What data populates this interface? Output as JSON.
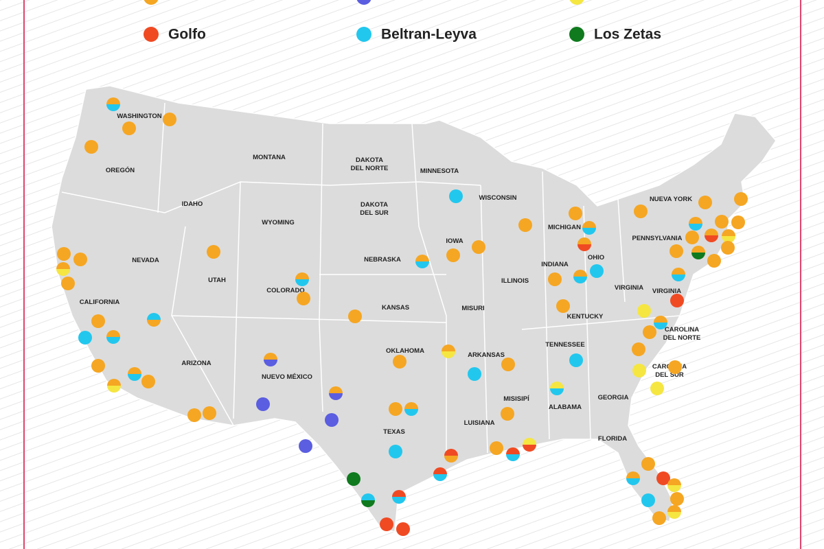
{
  "legend": [
    {
      "label": "Golfo",
      "color": "#f04a23"
    },
    {
      "label": "Beltran-Leyva",
      "color": "#22c7ee"
    },
    {
      "label": "Los Zetas",
      "color": "#0f7a1e"
    }
  ],
  "states": [
    [
      "WASHINGTON"
    ],
    [
      "OREGÓN"
    ],
    [
      "IDAHO"
    ],
    [
      "MONTANA"
    ],
    [
      "NEVADA"
    ],
    [
      "CALIFORNIA"
    ],
    [
      "UTAH"
    ],
    [
      "WYOMING"
    ],
    [
      "COLORADO"
    ],
    [
      "ARIZONA"
    ],
    [
      "NUEVO MÉXICO"
    ],
    [
      "DAKOTA",
      "DEL NORTE"
    ],
    [
      "DAKOTA",
      "DEL SUR"
    ],
    [
      "NEBRASKA"
    ],
    [
      "KANSAS"
    ],
    [
      "OKLAHOMA"
    ],
    [
      "TEXAS"
    ],
    [
      "MINNESOTA"
    ],
    [
      "IOWA"
    ],
    [
      "MISURI"
    ],
    [
      "ARKANSAS"
    ],
    [
      "LUISIANA"
    ],
    [
      "WISCONSIN"
    ],
    [
      "ILLINOIS"
    ],
    [
      "MISISIPÍ"
    ],
    [
      "MICHIGAN"
    ],
    [
      "INDIANA"
    ],
    [
      "OHIO"
    ],
    [
      "KENTUCKY"
    ],
    [
      "TENNESSEE"
    ],
    [
      "ALABAMA"
    ],
    [
      "GEORGIA"
    ],
    [
      "FLORIDA"
    ],
    [
      "VIRGINIA"
    ],
    [
      "VIRGINIA"
    ],
    [
      "CAROLINA",
      "DEL NORTE"
    ],
    [
      "CAROLINA",
      "DEL SUR"
    ],
    [
      "PENNSYLVANIA"
    ],
    [
      "NUEVA YORK"
    ]
  ]
}
